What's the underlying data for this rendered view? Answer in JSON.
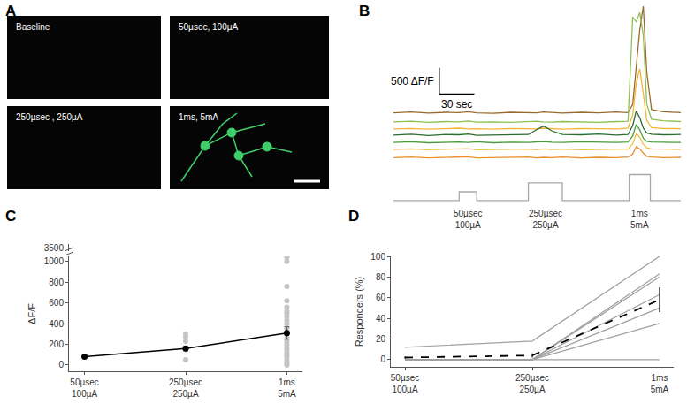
{
  "panel_labels": [
    "A",
    "B",
    "C",
    "D"
  ],
  "images": {
    "tiles": [
      "Baseline",
      "50µsec, 100µA",
      "250µsec , 250µA",
      "1ms, 5mA"
    ]
  },
  "chart_data": [
    {
      "type": "line",
      "tick_labels": false,
      "xlim": [
        0,
        245
      ],
      "ylim": [
        0,
        3800
      ],
      "x": [
        0,
        15,
        30,
        45,
        56,
        64,
        71,
        85,
        100,
        115,
        122,
        128,
        135,
        144,
        160,
        175,
        190,
        200,
        204,
        207,
        210,
        213,
        216,
        220,
        230,
        245
      ],
      "series": [
        {
          "color": "#9a6a2a",
          "values": [
            1740,
            1755,
            1735,
            1750,
            1745,
            1760,
            1740,
            1730,
            1750,
            1745,
            1740,
            1755,
            1745,
            1735,
            1750,
            1740,
            1755,
            1745,
            1900,
            2600,
            3300,
            3750,
            2500,
            1800,
            1760,
            1745
          ]
        },
        {
          "color": "#8cc152",
          "values": [
            1570,
            1580,
            1560,
            1575,
            1570,
            1585,
            1565,
            1570,
            1560,
            1575,
            1580,
            1570,
            1565,
            1575,
            1570,
            1560,
            1575,
            1580,
            3550,
            3450,
            3630,
            3200,
            1900,
            1620,
            1590,
            1575
          ]
        },
        {
          "color": "#f2b632",
          "values": [
            1435,
            1445,
            1430,
            1440,
            1450,
            1435,
            1440,
            1430,
            1445,
            1440,
            1435,
            1450,
            1440,
            1430,
            1445,
            1440,
            1435,
            1450,
            1700,
            2300,
            2570,
            2100,
            1600,
            1460,
            1445,
            1440
          ]
        },
        {
          "color": "#2e6b2e",
          "values": [
            1320,
            1335,
            1310,
            1330,
            1325,
            1340,
            1315,
            1320,
            1335,
            1330,
            1420,
            1490,
            1400,
            1330,
            1325,
            1340,
            1320,
            1330,
            1500,
            1775,
            1650,
            1450,
            1360,
            1335,
            1325,
            1330
          ]
        },
        {
          "color": "#4a9a3a",
          "values": [
            1180,
            1195,
            1175,
            1185,
            1190,
            1180,
            1195,
            1175,
            1185,
            1180,
            1190,
            1200,
            1185,
            1180,
            1195,
            1185,
            1180,
            1190,
            1300,
            1520,
            1420,
            1260,
            1200,
            1190,
            1185,
            1180
          ]
        },
        {
          "color": "#f5c242",
          "values": [
            1050,
            1060,
            1045,
            1055,
            1050,
            1065,
            1045,
            1050,
            1060,
            1055,
            1045,
            1060,
            1050,
            1055,
            1045,
            1050,
            1060,
            1055,
            1150,
            1350,
            1280,
            1150,
            1080,
            1060,
            1055,
            1050
          ]
        },
        {
          "color": "#e8902a",
          "values": [
            895,
            905,
            890,
            900,
            895,
            910,
            890,
            895,
            900,
            905,
            890,
            900,
            895,
            905,
            890,
            900,
            895,
            905,
            960,
            1100,
            1060,
            980,
            920,
            905,
            895,
            900
          ]
        }
      ],
      "scale_bar": {
        "y": 500,
        "y_label": "500 ΔF/F",
        "x": 30,
        "x_label": "30 sec"
      },
      "stimulus": {
        "color": "#a8a8a8",
        "baseline": 85,
        "pulses": [
          {
            "start": 56,
            "end": 71,
            "level": 250,
            "label": "50µsec\n100µA"
          },
          {
            "start": 115,
            "end": 144,
            "level": 420,
            "label": "250µsec\n250µA"
          },
          {
            "start": 201,
            "end": 219,
            "level": 575,
            "label": "1ms\n5mA"
          }
        ]
      }
    },
    {
      "type": "scatter",
      "y_label": "ΔF/F",
      "categories": [
        "50µsec\n100µA",
        "250µsec\n250µA",
        "1ms\n5mA"
      ],
      "ylim": [
        -60,
        1050
      ],
      "yticks": [
        0,
        200,
        400,
        600,
        800,
        1000
      ],
      "y2lim": [
        3480,
        3520
      ],
      "y2ticks": [
        3500
      ],
      "series": [
        {
          "type": "scatter",
          "marker": "circle",
          "color": "#c4c4c4",
          "values": [
            [
              80
            ],
            [
              50,
              150,
              230,
              270,
              300
            ],
            [
              0,
              20,
              30,
              50,
              80,
              100,
              120,
              150,
              170,
              200,
              230,
              260,
              300,
              320,
              350,
              400,
              430,
              470,
              500,
              520,
              560,
              620,
              760,
              1000,
              1040
            ]
          ]
        },
        {
          "type": "line",
          "marker": "circle",
          "color": "#000000",
          "values": [
            80,
            160,
            310
          ],
          "errors": [
            5,
            20,
            60
          ]
        }
      ]
    },
    {
      "type": "line",
      "y_label": "Responders (%)",
      "categories": [
        "50µsec\n100µA",
        "250µsec\n250µA",
        "1ms\n5mA"
      ],
      "ylim": [
        -7,
        100
      ],
      "yticks": [
        0,
        20,
        40,
        60,
        80,
        100
      ],
      "series": [
        {
          "color": "#a0a0a0",
          "line_style": "solid",
          "values": [
            12,
            18,
            100
          ]
        },
        {
          "color": "#a0a0a0",
          "line_style": "solid",
          "values": [
            0,
            0,
            83
          ]
        },
        {
          "color": "#a0a0a0",
          "line_style": "solid",
          "values": [
            0,
            0,
            80
          ]
        },
        {
          "color": "#a0a0a0",
          "line_style": "solid",
          "values": [
            0,
            0,
            63
          ]
        },
        {
          "color": "#a0a0a0",
          "line_style": "solid",
          "values": [
            0,
            0,
            50
          ]
        },
        {
          "color": "#a0a0a0",
          "line_style": "solid",
          "values": [
            0,
            0,
            35
          ]
        },
        {
          "color": "#a0a0a0",
          "line_style": "solid",
          "values": [
            0,
            0,
            0
          ]
        },
        {
          "color": "#000000",
          "line_style": "dash",
          "values": [
            2,
            4,
            58
          ],
          "errors": [
            1,
            2,
            12
          ]
        }
      ]
    }
  ]
}
